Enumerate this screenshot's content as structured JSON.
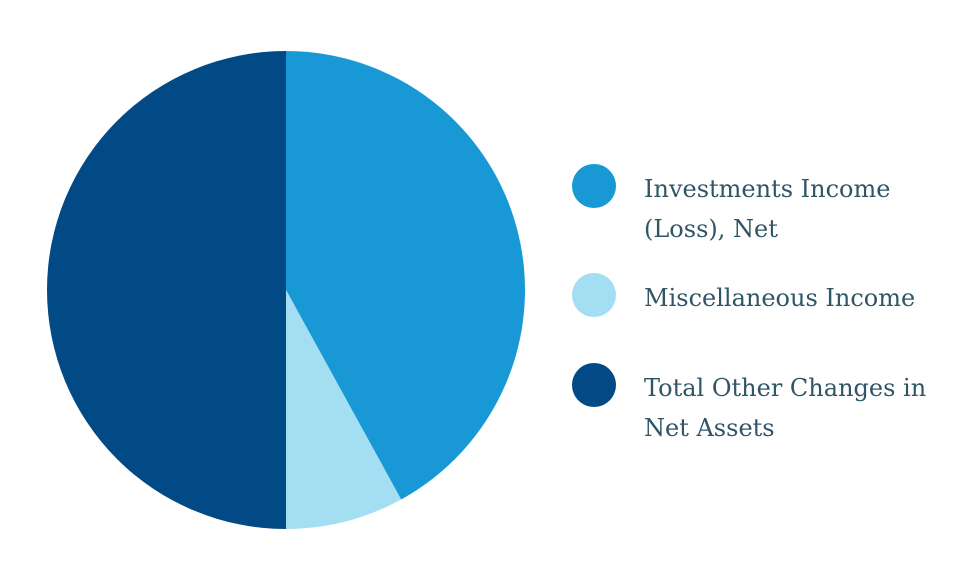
{
  "chart_data": {
    "type": "pie",
    "title": "",
    "slices": [
      {
        "label": "Investments Income (Loss), Net",
        "value": 42,
        "color": "#1899d6"
      },
      {
        "label": "Miscellaneous Income",
        "value": 8,
        "color": "#a3def2"
      },
      {
        "label": "Total Other Changes in Net Assets",
        "value": 50,
        "color": "#024a86"
      }
    ],
    "legend_position": "right"
  }
}
